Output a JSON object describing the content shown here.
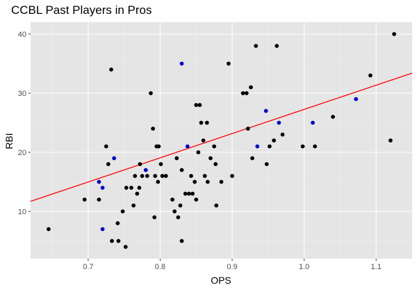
{
  "chart_data": {
    "type": "scatter",
    "title": "CCBL Past Players in Pros",
    "xlabel": "OPS",
    "ylabel": "RBI",
    "xlim": [
      0.62,
      1.15
    ],
    "ylim": [
      2,
      42
    ],
    "x_ticks": [
      "0.7",
      "0.8",
      "0.9",
      "1.0",
      "1.1"
    ],
    "y_ticks": [
      "10",
      "20",
      "30",
      "40"
    ],
    "grid": true,
    "colors": {
      "panel": "#e5e5e5",
      "grid_major": "#ffffff",
      "grid_minor": "#f0f0f0",
      "regular": "#000000",
      "highlight": "#0000cc",
      "trend": "#ff0000"
    },
    "series": [
      {
        "color": "#000000",
        "points": [
          [
            0.645,
            7
          ],
          [
            0.695,
            12
          ],
          [
            0.715,
            12
          ],
          [
            0.725,
            21
          ],
          [
            0.728,
            18
          ],
          [
            0.732,
            34
          ],
          [
            0.733,
            5
          ],
          [
            0.741,
            8
          ],
          [
            0.742,
            5
          ],
          [
            0.748,
            10
          ],
          [
            0.752,
            4
          ],
          [
            0.753,
            14
          ],
          [
            0.76,
            14
          ],
          [
            0.763,
            11
          ],
          [
            0.765,
            16
          ],
          [
            0.768,
            13
          ],
          [
            0.771,
            14
          ],
          [
            0.772,
            18
          ],
          [
            0.775,
            16
          ],
          [
            0.782,
            16
          ],
          [
            0.787,
            30
          ],
          [
            0.79,
            24
          ],
          [
            0.792,
            9
          ],
          [
            0.793,
            16
          ],
          [
            0.795,
            21
          ],
          [
            0.797,
            15
          ],
          [
            0.798,
            21
          ],
          [
            0.801,
            18
          ],
          [
            0.803,
            16
          ],
          [
            0.808,
            16
          ],
          [
            0.817,
            12
          ],
          [
            0.82,
            10
          ],
          [
            0.823,
            19
          ],
          [
            0.825,
            9
          ],
          [
            0.828,
            11
          ],
          [
            0.83,
            17
          ],
          [
            0.83,
            5
          ],
          [
            0.835,
            13
          ],
          [
            0.84,
            13
          ],
          [
            0.843,
            16
          ],
          [
            0.845,
            13
          ],
          [
            0.848,
            15
          ],
          [
            0.85,
            28
          ],
          [
            0.85,
            12
          ],
          [
            0.853,
            20
          ],
          [
            0.855,
            28
          ],
          [
            0.857,
            25
          ],
          [
            0.86,
            22
          ],
          [
            0.862,
            16
          ],
          [
            0.865,
            25
          ],
          [
            0.866,
            15
          ],
          [
            0.87,
            19
          ],
          [
            0.875,
            21
          ],
          [
            0.877,
            18
          ],
          [
            0.878,
            11
          ],
          [
            0.885,
            15
          ],
          [
            0.895,
            35
          ],
          [
            0.9,
            16
          ],
          [
            0.915,
            30
          ],
          [
            0.92,
            30
          ],
          [
            0.922,
            24
          ],
          [
            0.926,
            31
          ],
          [
            0.928,
            19
          ],
          [
            0.933,
            38
          ],
          [
            0.948,
            18
          ],
          [
            0.952,
            21
          ],
          [
            0.958,
            22
          ],
          [
            0.962,
            38
          ],
          [
            0.97,
            23
          ],
          [
            0.998,
            21
          ],
          [
            1.015,
            21
          ],
          [
            1.04,
            26
          ],
          [
            1.092,
            33
          ],
          [
            1.12,
            22
          ],
          [
            1.125,
            40
          ]
        ]
      },
      {
        "color": "#0000cc",
        "points": [
          [
            0.715,
            15
          ],
          [
            0.72,
            14
          ],
          [
            0.72,
            7
          ],
          [
            0.736,
            19
          ],
          [
            0.78,
            17
          ],
          [
            0.83,
            35
          ],
          [
            0.838,
            21
          ],
          [
            0.935,
            21
          ],
          [
            0.947,
            27
          ],
          [
            0.965,
            25
          ],
          [
            1.012,
            25
          ],
          [
            1.072,
            29
          ]
        ]
      }
    ],
    "trend_line": {
      "x": [
        0.62,
        1.15
      ],
      "y": [
        11.7,
        33.4
      ]
    }
  }
}
